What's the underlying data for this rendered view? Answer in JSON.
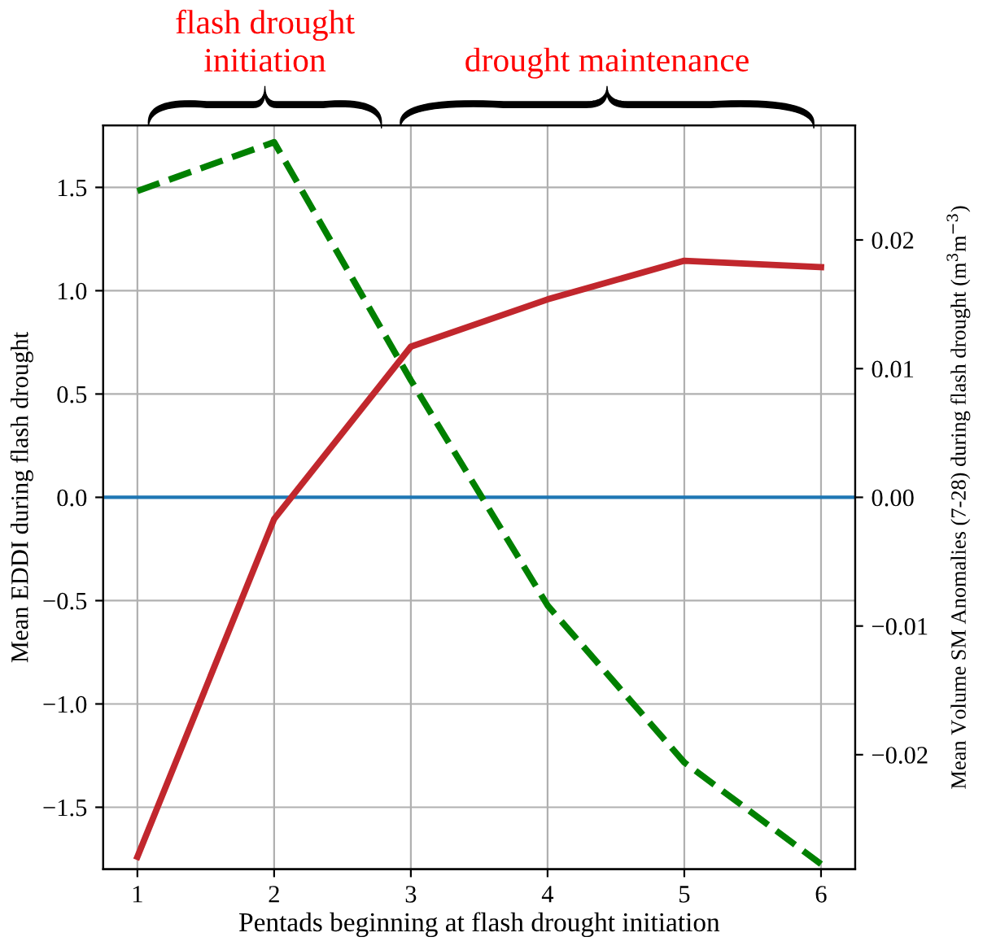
{
  "chart_data": {
    "type": "line",
    "xlabel": "Pentads beginning at flash drought initiation",
    "ylabel": "Mean EDDI during flash drought",
    "y2label": "Mean Volume SM Anomalies (7-28) during flash drought (m$^{3}$m$^{−3}$)",
    "x": [
      1,
      2,
      3,
      4,
      5,
      6
    ],
    "series": [
      {
        "color": "#c1272d",
        "line_style": "solid",
        "values": [
          -1.74,
          -0.105,
          0.729,
          0.958,
          1.145,
          1.114
        ]
      },
      {
        "color": "#008000",
        "line_style": "dashed",
        "axis": "y2",
        "values": [
          0.0238,
          0.0276,
          0.0091,
          -0.0084,
          -0.0206,
          -0.0285
        ]
      }
    ],
    "xlim": [
      0.75,
      6.25
    ],
    "xticks": [
      1,
      2,
      3,
      4,
      5,
      6
    ],
    "ylim": [
      -1.8,
      1.8
    ],
    "yticks": [
      {
        "value": -1.5,
        "label": "−1.5"
      },
      {
        "value": -1,
        "label": "−1.0"
      },
      {
        "value": -0.5,
        "label": "−0.5"
      },
      {
        "value": 0,
        "label": "0.0"
      },
      0.5,
      {
        "value": 1,
        "label": "1.0"
      },
      1.5
    ],
    "y2lim": [
      -0.0289,
      0.0289
    ],
    "y2ticks": [
      {
        "value": -0.02,
        "label": "−0.02"
      },
      {
        "value": -0.01,
        "label": "−0.01"
      },
      {
        "value": 0,
        "label": "0.00"
      },
      0.01,
      0.02
    ],
    "ref_lines": [
      {
        "axis": "y",
        "value": 0,
        "color": "#1f77b4"
      }
    ],
    "annotations": [
      "flash drought\ninitiation",
      "drought maintenance"
    ],
    "grid": true,
    "marker": "none"
  }
}
